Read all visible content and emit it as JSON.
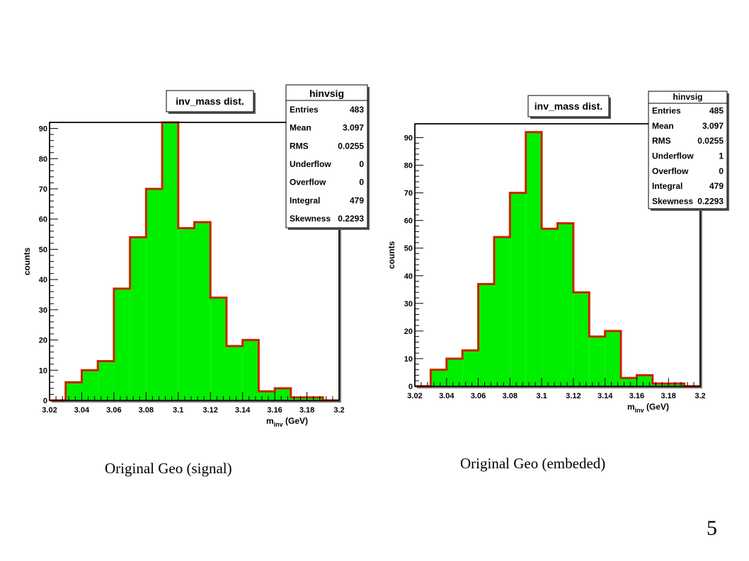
{
  "chart_data": [
    {
      "type": "bar",
      "title": "inv_mass dist.",
      "xlabel": "m",
      "xlabel_sub": "inv",
      "xlabel_unit": "(GeV)",
      "ylabel": "counts",
      "xlim": [
        3.02,
        3.2
      ],
      "ylim": [
        0,
        92
      ],
      "bin_edges": [
        3.02,
        3.03,
        3.04,
        3.05,
        3.06,
        3.07,
        3.08,
        3.09,
        3.1,
        3.11,
        3.12,
        3.13,
        3.14,
        3.15,
        3.16,
        3.17,
        3.18,
        3.19,
        3.2
      ],
      "values": [
        0,
        6,
        10,
        13,
        37,
        54,
        70,
        92,
        57,
        59,
        34,
        18,
        20,
        3,
        4,
        1,
        1,
        0
      ],
      "x_ticks": [
        "3.02",
        "3.04",
        "3.06",
        "3.08",
        "3.1",
        "3.12",
        "3.14",
        "3.16",
        "3.18",
        "3.2"
      ],
      "y_ticks": [
        "0",
        "10",
        "20",
        "30",
        "40",
        "50",
        "60",
        "70",
        "80",
        "90"
      ],
      "fill_color": "#00ee00",
      "line_color": "#cc2200",
      "stats": {
        "name": "hinvsig",
        "rows": [
          {
            "label": "Entries",
            "value": "483"
          },
          {
            "label": "Mean",
            "value": "3.097"
          },
          {
            "label": "RMS",
            "value": "0.0255"
          },
          {
            "label": "Underflow",
            "value": "0"
          },
          {
            "label": "Overflow",
            "value": "0"
          },
          {
            "label": "Integral",
            "value": "479"
          },
          {
            "label": "Skewness",
            "value": "0.2293"
          }
        ]
      }
    },
    {
      "type": "bar",
      "title": "inv_mass dist.",
      "xlabel": "m",
      "xlabel_sub": "inv",
      "xlabel_unit": "(GeV)",
      "ylabel": "counts",
      "xlim": [
        3.02,
        3.2
      ],
      "ylim": [
        0,
        95
      ],
      "bin_edges": [
        3.02,
        3.03,
        3.04,
        3.05,
        3.06,
        3.07,
        3.08,
        3.09,
        3.1,
        3.11,
        3.12,
        3.13,
        3.14,
        3.15,
        3.16,
        3.17,
        3.18,
        3.19,
        3.2
      ],
      "values": [
        0,
        6,
        10,
        13,
        37,
        54,
        70,
        92,
        57,
        59,
        34,
        18,
        20,
        3,
        4,
        1,
        1,
        0
      ],
      "x_ticks": [
        "3.02",
        "3.04",
        "3.06",
        "3.08",
        "3.1",
        "3.12",
        "3.14",
        "3.16",
        "3.18",
        "3.2"
      ],
      "y_ticks": [
        "0",
        "10",
        "20",
        "30",
        "40",
        "50",
        "60",
        "70",
        "80",
        "90"
      ],
      "fill_color": "#00ee00",
      "line_color": "#cc2200",
      "stats": {
        "name": "hinvsig",
        "rows": [
          {
            "label": "Entries",
            "value": "485"
          },
          {
            "label": "Mean",
            "value": "3.097"
          },
          {
            "label": "RMS",
            "value": "0.0255"
          },
          {
            "label": "Underflow",
            "value": "1"
          },
          {
            "label": "Overflow",
            "value": "0"
          },
          {
            "label": "Integral",
            "value": "479"
          },
          {
            "label": "Skewness",
            "value": "0.2293"
          }
        ]
      }
    }
  ],
  "captions": {
    "left": "Original Geo (signal)",
    "right": "Original Geo (embeded)"
  },
  "page_number": "5"
}
